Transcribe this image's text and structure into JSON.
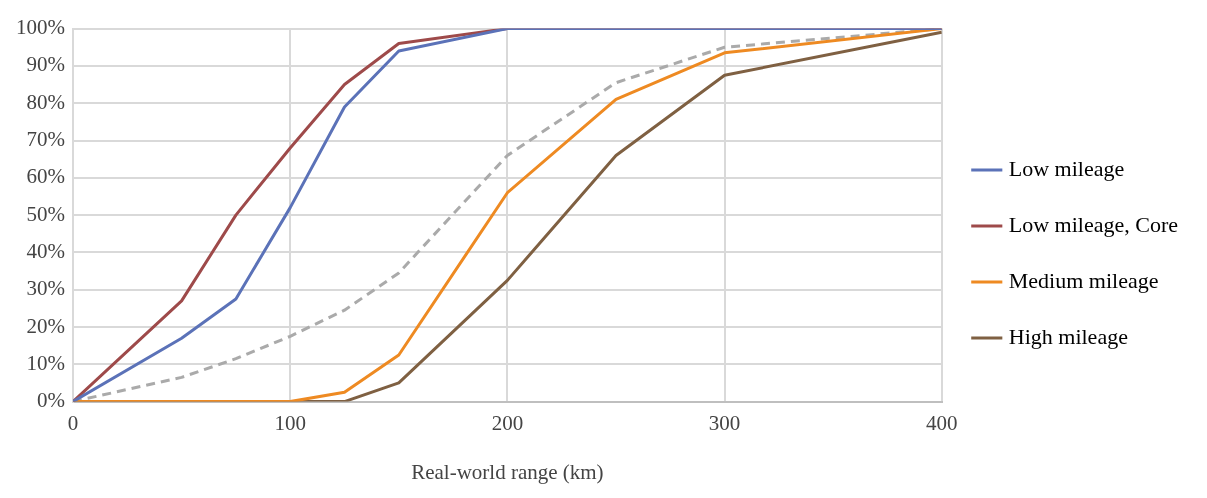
{
  "chart_data": {
    "type": "line",
    "xlabel": "Real-world range (km)",
    "xlim": [
      0,
      400
    ],
    "xticks": [
      0,
      100,
      200,
      300,
      400
    ],
    "ylim": [
      0,
      100
    ],
    "yticks": [
      {
        "value": 0,
        "label": "0%"
      },
      {
        "value": 10,
        "label": "10%"
      },
      {
        "value": 20,
        "label": "20%"
      },
      {
        "value": 30,
        "label": "30%"
      },
      {
        "value": 40,
        "label": "40%"
      },
      {
        "value": 50,
        "label": "50%"
      },
      {
        "value": 60,
        "label": "60%"
      },
      {
        "value": 70,
        "label": "70%"
      },
      {
        "value": 80,
        "label": "80%"
      },
      {
        "value": 90,
        "label": "90%"
      },
      {
        "value": 100,
        "label": "100%"
      }
    ],
    "grid": true,
    "legend": "right",
    "marker": "none",
    "line_style": "solid",
    "series": [
      {
        "name": "Low mileage",
        "color": "#5b72b8",
        "x": [
          0,
          50,
          75,
          100,
          125,
          150,
          200,
          400
        ],
        "values": [
          0,
          17,
          27.5,
          52,
          79,
          94,
          100,
          100
        ]
      },
      {
        "name": "Low mileage, Core",
        "color": "#9e4a4a",
        "x": [
          0,
          50,
          75,
          100,
          125,
          150,
          200,
          400
        ],
        "values": [
          0,
          27,
          50,
          68,
          85,
          96,
          100,
          100
        ]
      },
      {
        "name": "Medium mileage",
        "color": "#ee8a22",
        "x": [
          0,
          100,
          125,
          150,
          200,
          250,
          300,
          400
        ],
        "values": [
          0,
          0,
          2.5,
          12.5,
          56,
          81,
          93.5,
          100
        ]
      },
      {
        "name": "High mileage",
        "color": "#7f6042",
        "x": [
          0,
          125,
          150,
          200,
          250,
          300,
          400
        ],
        "values": [
          0,
          0,
          5,
          32.5,
          66,
          87.5,
          99
        ]
      },
      {
        "color": "#aaaaaa",
        "line_style": "dashed",
        "x": [
          0,
          50,
          75,
          100,
          125,
          150,
          200,
          250,
          300,
          400
        ],
        "values": [
          0,
          6.5,
          11.5,
          17.5,
          24.5,
          34.5,
          66,
          85.5,
          95,
          100
        ]
      }
    ]
  }
}
